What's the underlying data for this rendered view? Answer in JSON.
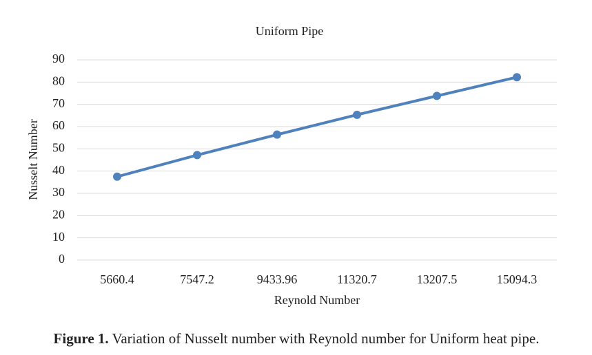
{
  "chart_data": {
    "type": "line",
    "title": "Uniform Pipe",
    "x_label": "Reynold Number",
    "y_label": "Nusselt Number",
    "categories": [
      "5660.4",
      "7547.2",
      "9433.96",
      "11320.7",
      "13207.5",
      "15094.3"
    ],
    "series": [
      {
        "name": "Nusselt Number",
        "color": "#4f81bd",
        "values": [
          37.5,
          47.2,
          56.4,
          65.3,
          73.8,
          82.2
        ]
      }
    ],
    "ylim": [
      0,
      90
    ],
    "yticks": [
      0,
      10,
      20,
      30,
      40,
      50,
      60,
      70,
      80,
      90
    ],
    "grid": true
  },
  "caption": {
    "label": "Figure 1.",
    "text": "Variation of Nusselt number with Reynold number for Uniform heat pipe."
  }
}
